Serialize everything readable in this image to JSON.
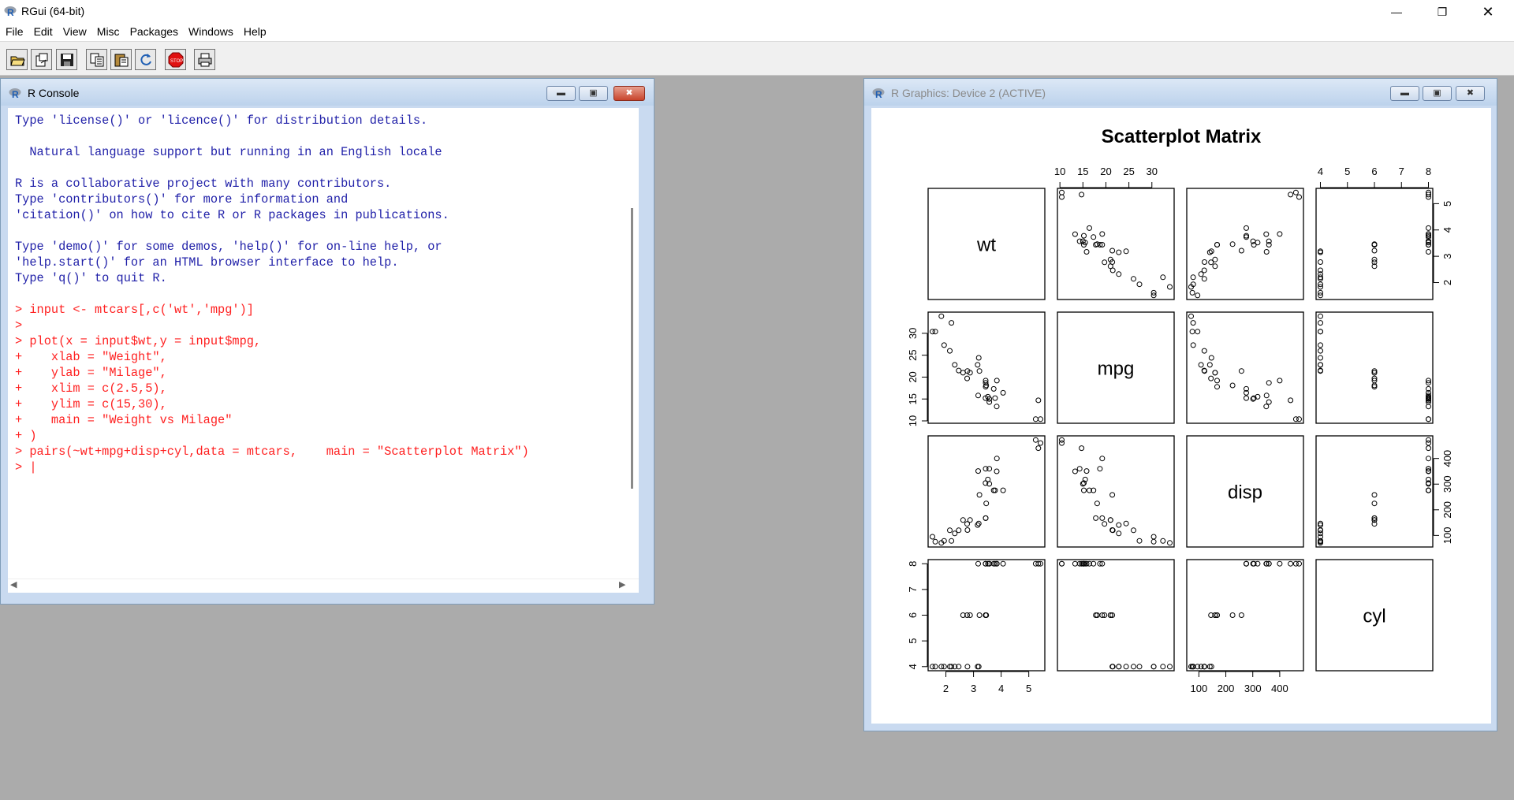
{
  "app": {
    "title": "RGui (64-bit)"
  },
  "menu": [
    "File",
    "Edit",
    "View",
    "Misc",
    "Packages",
    "Windows",
    "Help"
  ],
  "toolbar_icons": [
    "open-script-icon",
    "load-workspace-icon",
    "save-icon",
    "copy-icon",
    "paste-icon",
    "copy-paste-icon",
    "refresh-icon",
    "stop-icon",
    "print-icon"
  ],
  "console": {
    "title": "R Console",
    "lines": [
      {
        "text": "Type 'license()' or 'licence()' for distribution details.",
        "color": "#1f1fa8"
      },
      {
        "text": "",
        "color": "#1f1fa8"
      },
      {
        "text": "  Natural language support but running in an English locale",
        "color": "#1f1fa8"
      },
      {
        "text": "",
        "color": "#1f1fa8"
      },
      {
        "text": "R is a collaborative project with many contributors.",
        "color": "#1f1fa8"
      },
      {
        "text": "Type 'contributors()' for more information and",
        "color": "#1f1fa8"
      },
      {
        "text": "'citation()' on how to cite R or R packages in publications.",
        "color": "#1f1fa8"
      },
      {
        "text": "",
        "color": "#1f1fa8"
      },
      {
        "text": "Type 'demo()' for some demos, 'help()' for on-line help, or",
        "color": "#1f1fa8"
      },
      {
        "text": "'help.start()' for an HTML browser interface to help.",
        "color": "#1f1fa8"
      },
      {
        "text": "Type 'q()' to quit R.",
        "color": "#1f1fa8"
      },
      {
        "text": "",
        "color": "#1f1fa8"
      },
      {
        "text": "> input <- mtcars[,c('wt','mpg')]",
        "color": "#ff2020"
      },
      {
        "text": ">",
        "color": "#ff2020"
      },
      {
        "text": "> plot(x = input$wt,y = input$mpg,",
        "color": "#ff2020"
      },
      {
        "text": "+    xlab = \"Weight\",",
        "color": "#ff2020"
      },
      {
        "text": "+    ylab = \"Milage\",",
        "color": "#ff2020"
      },
      {
        "text": "+    xlim = c(2.5,5),",
        "color": "#ff2020"
      },
      {
        "text": "+    ylim = c(15,30),",
        "color": "#ff2020"
      },
      {
        "text": "+    main = \"Weight vs Milage\"",
        "color": "#ff2020"
      },
      {
        "text": "+ )",
        "color": "#ff2020"
      },
      {
        "text": "> pairs(~wt+mpg+disp+cyl,data = mtcars,    main = \"Scatterplot Matrix\")",
        "color": "#ff2020"
      },
      {
        "text": "> |",
        "color": "#ff2020"
      }
    ]
  },
  "graphics": {
    "title": "R Graphics: Device 2 (ACTIVE)"
  },
  "chart_data": {
    "type": "scatter",
    "title": "Scatterplot Matrix",
    "variables": [
      "wt",
      "mpg",
      "disp",
      "cyl"
    ],
    "axis_ticks": {
      "wt": [
        2,
        3,
        4,
        5
      ],
      "mpg": [
        10,
        15,
        20,
        25,
        30
      ],
      "disp": [
        100,
        200,
        300,
        400
      ],
      "cyl": [
        4,
        5,
        6,
        7,
        8
      ]
    },
    "ranges": {
      "wt": [
        1.513,
        5.424
      ],
      "mpg": [
        10.4,
        33.9
      ],
      "disp": [
        71.1,
        472
      ],
      "cyl": [
        4,
        8
      ]
    },
    "data": {
      "wt": [
        2.62,
        2.875,
        2.32,
        3.215,
        3.44,
        3.46,
        3.57,
        3.19,
        3.15,
        3.44,
        3.44,
        4.07,
        3.73,
        3.78,
        5.25,
        5.424,
        5.345,
        2.2,
        1.615,
        1.835,
        2.465,
        3.52,
        3.435,
        3.84,
        3.845,
        1.935,
        2.14,
        1.513,
        3.17,
        2.77,
        3.57,
        2.78
      ],
      "mpg": [
        21,
        21,
        22.8,
        21.4,
        18.7,
        18.1,
        14.3,
        24.4,
        22.8,
        19.2,
        17.8,
        16.4,
        17.3,
        15.2,
        10.4,
        10.4,
        14.7,
        32.4,
        30.4,
        33.9,
        21.5,
        15.5,
        15.2,
        13.3,
        19.2,
        27.3,
        26,
        30.4,
        15.8,
        19.7,
        15,
        21.4
      ],
      "disp": [
        160,
        160,
        108,
        258,
        360,
        225,
        360,
        146.7,
        140.8,
        167.6,
        167.6,
        275.8,
        275.8,
        275.8,
        472,
        460,
        440,
        78.7,
        75.7,
        71.1,
        120.1,
        318,
        304,
        350,
        400,
        79,
        120.3,
        95.1,
        351,
        145,
        301,
        121
      ],
      "cyl": [
        6,
        6,
        4,
        6,
        8,
        6,
        8,
        4,
        4,
        6,
        6,
        8,
        8,
        8,
        8,
        8,
        8,
        4,
        4,
        4,
        4,
        8,
        8,
        8,
        8,
        4,
        4,
        4,
        8,
        6,
        8,
        4
      ]
    }
  }
}
